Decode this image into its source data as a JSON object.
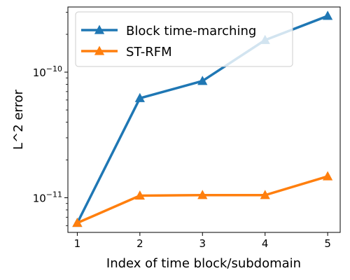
{
  "chart_data": {
    "type": "line",
    "title": "",
    "xlabel": "Index of time block/subdomain",
    "ylabel": "L^2 error",
    "x": [
      1,
      2,
      3,
      4,
      5
    ],
    "xlim": [
      0.85,
      5.2
    ],
    "yscale": "log",
    "ylim": [
      5.3e-12,
      3.3e-10
    ],
    "x_ticks": [
      1,
      2,
      3,
      4,
      5
    ],
    "y_major_ticks": [
      {
        "value": 1e-11,
        "base": "10",
        "exp": "−11"
      },
      {
        "value": 1e-10,
        "base": "10",
        "exp": "−10"
      }
    ],
    "grid": false,
    "legend_position": "upper-left",
    "series": [
      {
        "name": "Block time-marching",
        "color": "#1f77b4",
        "marker": "triangle-up",
        "values": [
          6.3e-12,
          6.2e-11,
          8.5e-11,
          1.8e-10,
          2.8e-10
        ]
      },
      {
        "name": "ST-RFM",
        "color": "#ff7f0e",
        "marker": "triangle-up",
        "values": [
          6.3e-12,
          1.04e-11,
          1.05e-11,
          1.05e-11,
          1.48e-11
        ]
      }
    ]
  }
}
